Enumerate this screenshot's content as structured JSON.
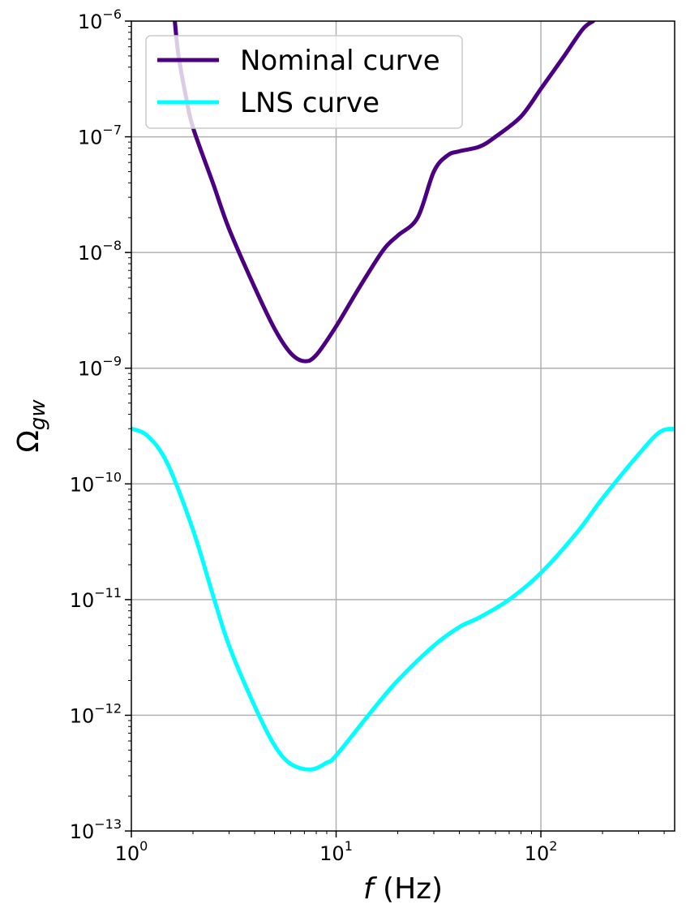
{
  "chart_data": {
    "type": "line",
    "xscale": "log",
    "yscale": "log",
    "xlim": [
      1,
      450
    ],
    "ylim": [
      1e-13,
      1e-06
    ],
    "grid": true,
    "legend_position": "top-left",
    "xlabel": {
      "var": "f",
      "unit": " (Hz)"
    },
    "ylabel": {
      "base": "Ω",
      "sub": "gw"
    },
    "x_ticks": [
      {
        "value": 1,
        "base": "10",
        "exp": "0"
      },
      {
        "value": 10,
        "base": "10",
        "exp": "1"
      },
      {
        "value": 100,
        "base": "10",
        "exp": "2"
      }
    ],
    "y_ticks": [
      {
        "value": 1e-13,
        "base": "10",
        "exp": "−13"
      },
      {
        "value": 1e-12,
        "base": "10",
        "exp": "−12"
      },
      {
        "value": 1e-11,
        "base": "10",
        "exp": "−11"
      },
      {
        "value": 1e-10,
        "base": "10",
        "exp": "−10"
      },
      {
        "value": 1e-09,
        "base": "10",
        "exp": "−9"
      },
      {
        "value": 1e-08,
        "base": "10",
        "exp": "−8"
      },
      {
        "value": 1e-07,
        "base": "10",
        "exp": "−7"
      },
      {
        "value": 1e-06,
        "base": "10",
        "exp": "−6"
      }
    ],
    "series": [
      {
        "name": "Nominal curve",
        "color": "#4b0082",
        "x": [
          1.63,
          1.7,
          1.85,
          2.0,
          2.5,
          3.0,
          4.0,
          5.0,
          6.0,
          7.0,
          8.0,
          10.0,
          13.0,
          17.0,
          20.0,
          25.0,
          30.0,
          35.0,
          40.0,
          50.0,
          60.0,
          80.0,
          100.0,
          130.0,
          160.0,
          180.0
        ],
        "y": [
          1e-06,
          5e-07,
          2.2e-07,
          1.2e-07,
          4e-08,
          1.6e-08,
          5e-09,
          2.2e-09,
          1.35e-09,
          1.15e-09,
          1.3e-09,
          2.3e-09,
          5e-09,
          1.05e-08,
          1.4e-08,
          2e-08,
          5e-08,
          6.9e-08,
          7.5e-08,
          8.2e-08,
          1e-07,
          1.5e-07,
          2.6e-07,
          5e-07,
          8.5e-07,
          1e-06
        ]
      },
      {
        "name": "LNS curve",
        "color": "#00ffff",
        "x": [
          1.0,
          1.2,
          1.5,
          2.0,
          2.5,
          3.0,
          4.0,
          5.0,
          6.0,
          7.5,
          9.0,
          10.0,
          15.0,
          20.0,
          30.0,
          40.0,
          50.0,
          70.0,
          100.0,
          150.0,
          200.0,
          300.0,
          380.0,
          450.0
        ],
        "y": [
          3e-10,
          2.6e-10,
          1.5e-10,
          4e-11,
          1.1e-11,
          4e-12,
          1.2e-12,
          5.5e-13,
          3.8e-13,
          3.4e-13,
          3.9e-13,
          4.5e-13,
          1.1e-12,
          2e-12,
          4e-12,
          5.8e-12,
          7e-12,
          1e-11,
          1.7e-11,
          3.8e-11,
          7.5e-11,
          1.8e-10,
          2.8e-10,
          3e-10
        ]
      }
    ]
  }
}
